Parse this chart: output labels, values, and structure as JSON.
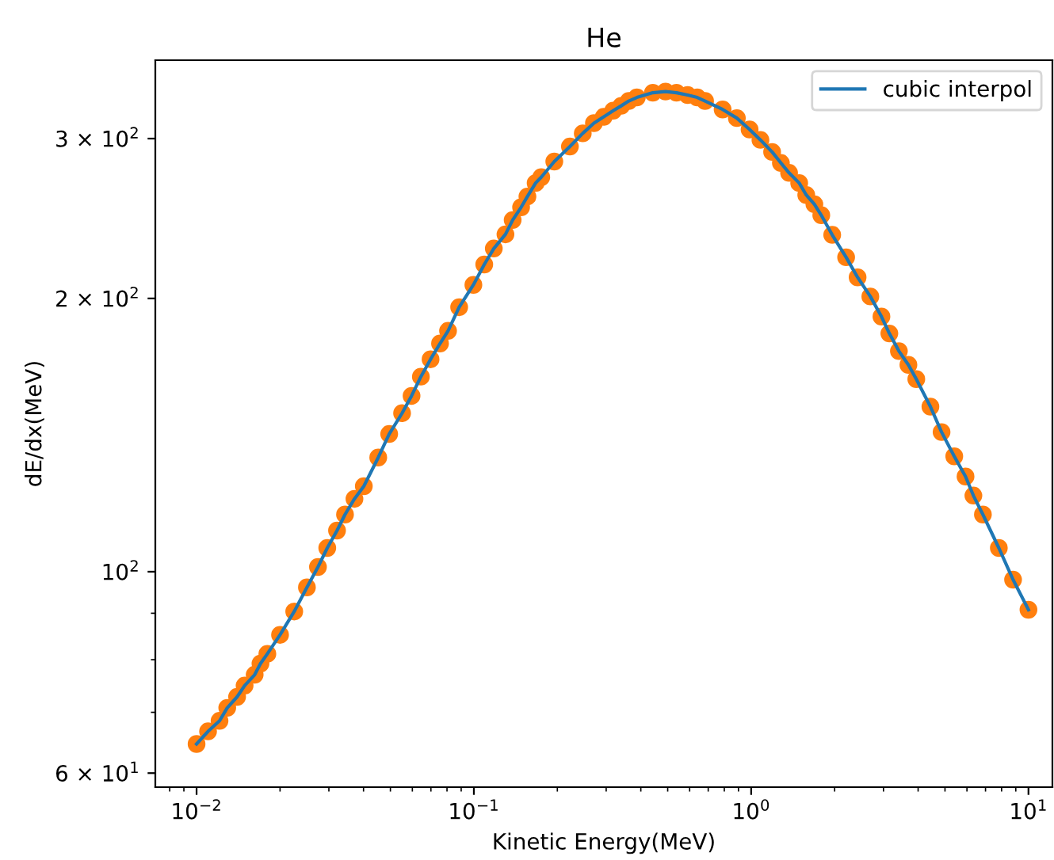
{
  "chart_data": {
    "type": "line",
    "title": "He",
    "xlabel": "Kinetic Energy(MeV)",
    "ylabel": "dE/dx(MeV)",
    "log": "xy",
    "legend": "top right",
    "grid": false,
    "xlim": [
      0.0071,
      12.2
    ],
    "ylim": [
      57.9,
      366
    ],
    "xticks": [
      {
        "value": 0.01,
        "label": "10$^{−2}$"
      },
      {
        "value": 0.1,
        "label": "10$^{−1}$"
      },
      {
        "value": 1,
        "label": "10$^{0}$"
      },
      {
        "value": 10,
        "label": "10$^{1}$"
      }
    ],
    "yticks": [
      {
        "value": 60,
        "label": "6 × 10$^{1}$"
      },
      {
        "value": 100,
        "label": "10$^{2}$"
      },
      {
        "value": 200,
        "label": "2 × 10$^{2}$"
      },
      {
        "value": 300,
        "label": "3 × 10$^{2}$"
      }
    ],
    "x": [
      0.01,
      0.011,
      0.0121,
      0.0129,
      0.014,
      0.0149,
      0.0162,
      0.017,
      0.018,
      0.02,
      0.0225,
      0.025,
      0.0274,
      0.0296,
      0.0321,
      0.0343,
      0.0371,
      0.0401,
      0.0452,
      0.0495,
      0.0551,
      0.0596,
      0.0644,
      0.0698,
      0.0755,
      0.0807,
      0.0885,
      0.0996,
      0.109,
      0.118,
      0.13,
      0.138,
      0.148,
      0.156,
      0.167,
      0.175,
      0.195,
      0.222,
      0.247,
      0.271,
      0.294,
      0.318,
      0.34,
      0.362,
      0.387,
      0.442,
      0.491,
      0.538,
      0.59,
      0.639,
      0.682,
      0.789,
      0.888,
      0.987,
      1.08,
      1.19,
      1.28,
      1.37,
      1.49,
      1.58,
      1.69,
      1.79,
      1.96,
      2.2,
      2.42,
      2.69,
      2.95,
      3.15,
      3.41,
      3.69,
      3.94,
      4.43,
      4.86,
      5.4,
      5.93,
      6.33,
      6.85,
      7.82,
      8.8,
      10
    ],
    "series": [
      {
        "name": "cubic interpol",
        "color": "#1f77b4",
        "marker": "none",
        "values": [
          64.6,
          66.7,
          68.5,
          70.8,
          72.8,
          74.9,
          77.0,
          79.2,
          81.2,
          85.2,
          90.4,
          96.1,
          101.2,
          106.2,
          111,
          115.6,
          120.3,
          124.2,
          133.6,
          141.8,
          149.5,
          156.2,
          164,
          171.4,
          178.4,
          184.2,
          195.6,
          207,
          218,
          227,
          235.3,
          244,
          252,
          259,
          268,
          272,
          283,
          294,
          304,
          312,
          317,
          322,
          326,
          330,
          333,
          337,
          338,
          337,
          335,
          333,
          330,
          323,
          316,
          307,
          299,
          290,
          282,
          275,
          268,
          260,
          254,
          247,
          235,
          222,
          211,
          201,
          191,
          183,
          175,
          169,
          163,
          152,
          142.5,
          134,
          127.3,
          121.3,
          115.6,
          106.2,
          98,
          90.8
        ]
      },
      {
        "type": "scatter",
        "color": "#ff7f0e",
        "marker": "circle",
        "values": [
          64.6,
          66.7,
          68.5,
          70.8,
          72.8,
          74.9,
          77.0,
          79.2,
          81.2,
          85.2,
          90.4,
          96.1,
          101.2,
          106.2,
          111,
          115.6,
          120.3,
          124.2,
          133.6,
          141.8,
          149.5,
          156.2,
          164,
          171.4,
          178.4,
          184.2,
          195.6,
          207,
          218,
          227,
          235.3,
          244,
          252,
          259,
          268,
          272,
          283,
          294,
          304,
          312,
          317,
          322,
          326,
          330,
          333,
          337,
          338,
          337,
          335,
          333,
          330,
          323,
          316,
          307,
          299,
          290,
          282,
          275,
          268,
          260,
          254,
          247,
          235,
          222,
          211,
          201,
          191,
          183,
          175,
          169,
          163,
          152,
          142.5,
          134,
          127.3,
          121.3,
          115.6,
          106.2,
          98,
          90.8
        ]
      }
    ]
  }
}
